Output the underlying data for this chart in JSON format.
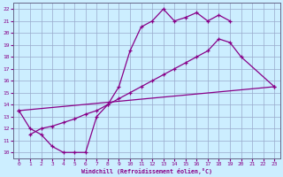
{
  "xlabel": "Windchill (Refroidissement éolien,°C)",
  "xlim": [
    -0.5,
    23.5
  ],
  "ylim": [
    9.5,
    22.5
  ],
  "xticks": [
    0,
    1,
    2,
    3,
    4,
    5,
    6,
    7,
    8,
    9,
    10,
    11,
    12,
    13,
    14,
    15,
    16,
    17,
    18,
    19,
    20,
    21,
    22,
    23
  ],
  "yticks": [
    10,
    11,
    12,
    13,
    14,
    15,
    16,
    17,
    18,
    19,
    20,
    21,
    22
  ],
  "line_color": "#880088",
  "bg_color": "#cceeff",
  "grid_color": "#99aacc",
  "line1_x": [
    0,
    1,
    2,
    3,
    4,
    5,
    6,
    7,
    8,
    9,
    10,
    11,
    12,
    13,
    14,
    15,
    16,
    17,
    18,
    19
  ],
  "line1_y": [
    13.5,
    12.0,
    11.5,
    10.5,
    10.0,
    10.0,
    10.0,
    13.0,
    14.0,
    15.5,
    18.5,
    20.5,
    21.0,
    22.0,
    21.0,
    21.3,
    21.7,
    21.0,
    21.5,
    21.0
  ],
  "line2_x": [
    1,
    2,
    3,
    4,
    5,
    6,
    7,
    8,
    9,
    10,
    11,
    12,
    13,
    14,
    15,
    16,
    17,
    18,
    19,
    20,
    23
  ],
  "line2_y": [
    11.5,
    12.0,
    12.2,
    12.5,
    12.8,
    13.2,
    13.5,
    14.0,
    14.5,
    15.0,
    15.5,
    16.0,
    16.5,
    17.0,
    17.5,
    18.0,
    18.5,
    19.5,
    19.2,
    18.0,
    15.5
  ],
  "line3_x": [
    0,
    23
  ],
  "line3_y": [
    13.5,
    15.5
  ]
}
